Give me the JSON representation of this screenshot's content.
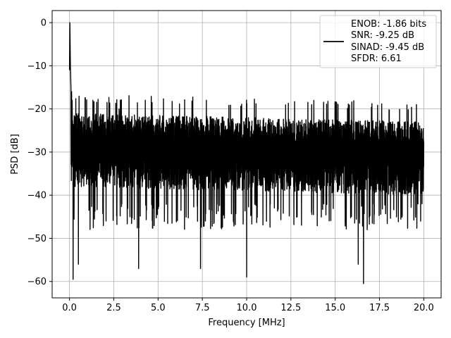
{
  "chart_data": {
    "type": "line",
    "title": "",
    "xlabel": "Frequency [MHz]",
    "ylabel": "PSD [dB]",
    "xlim": [
      -0.98,
      20.98
    ],
    "ylim": [
      -63.8,
      2.8
    ],
    "x_ticks": [
      0.0,
      2.5,
      5.0,
      7.5,
      10.0,
      12.5,
      15.0,
      17.5,
      20.0
    ],
    "x_tick_labels": [
      "0.0",
      "2.5",
      "5.0",
      "7.5",
      "10.0",
      "12.5",
      "15.0",
      "17.5",
      "20.0"
    ],
    "y_ticks": [
      0,
      -10,
      -20,
      -30,
      -40,
      -50,
      -60
    ],
    "y_tick_labels": [
      "0",
      "−10",
      "−20",
      "−30",
      "−40",
      "−50",
      "−60"
    ],
    "grid": true,
    "legend_position": "top-right",
    "legend": {
      "lines": [
        "ENOB: -1.86 bits",
        "SNR: -9.25 dB",
        "SINAD: -9.45 dB",
        "SFDR: 6.61"
      ]
    },
    "series": [
      {
        "color": "#000000",
        "description_points": {
          "x": [
            0.0,
            0.02,
            0.05,
            0.08,
            0.12,
            0.15,
            0.2,
            0.3,
            0.4,
            0.5,
            0.6,
            0.8,
            1.0,
            1.2,
            1.5,
            2.0,
            2.5,
            2.8,
            3.0,
            3.5,
            3.9,
            4.0,
            4.5,
            5.0,
            5.5,
            6.0,
            6.5,
            7.0,
            7.4,
            7.5,
            8.0,
            8.5,
            9.0,
            9.5,
            10.0,
            10.5,
            11.0,
            11.5,
            12.0,
            12.5,
            13.0,
            13.5,
            14.0,
            14.5,
            15.0,
            15.5,
            16.0,
            16.3,
            16.6,
            17.0,
            17.5,
            18.0,
            18.5,
            19.0,
            19.5,
            20.0
          ],
          "y": [
            -11.0,
            0.0,
            -10.0,
            -15.0,
            -16.0,
            -18.0,
            -59.5,
            -30.0,
            -28.0,
            -56.0,
            -30.0,
            -30.0,
            -32.0,
            -30.0,
            -29.0,
            -31.0,
            -30.0,
            -20.0,
            -31.0,
            -30.0,
            -57.0,
            -32.0,
            -30.0,
            -31.0,
            -30.0,
            -31.0,
            -30.0,
            -31.0,
            -57.0,
            -31.0,
            -32.0,
            -31.0,
            -32.0,
            -33.0,
            -59.0,
            -32.0,
            -32.0,
            -31.0,
            -32.0,
            -33.0,
            -32.0,
            -33.0,
            -33.0,
            -33.0,
            -32.0,
            -33.0,
            -33.0,
            -56.0,
            -60.5,
            -32.0,
            -32.0,
            -32.0,
            -32.0,
            -32.0,
            -32.0,
            -32.0
          ]
        },
        "noise_band": {
          "x_start": 0.08,
          "x_end": 20.0,
          "typical_low": -40,
          "typical_high": -23,
          "peak_high": -18.5
        }
      }
    ]
  }
}
